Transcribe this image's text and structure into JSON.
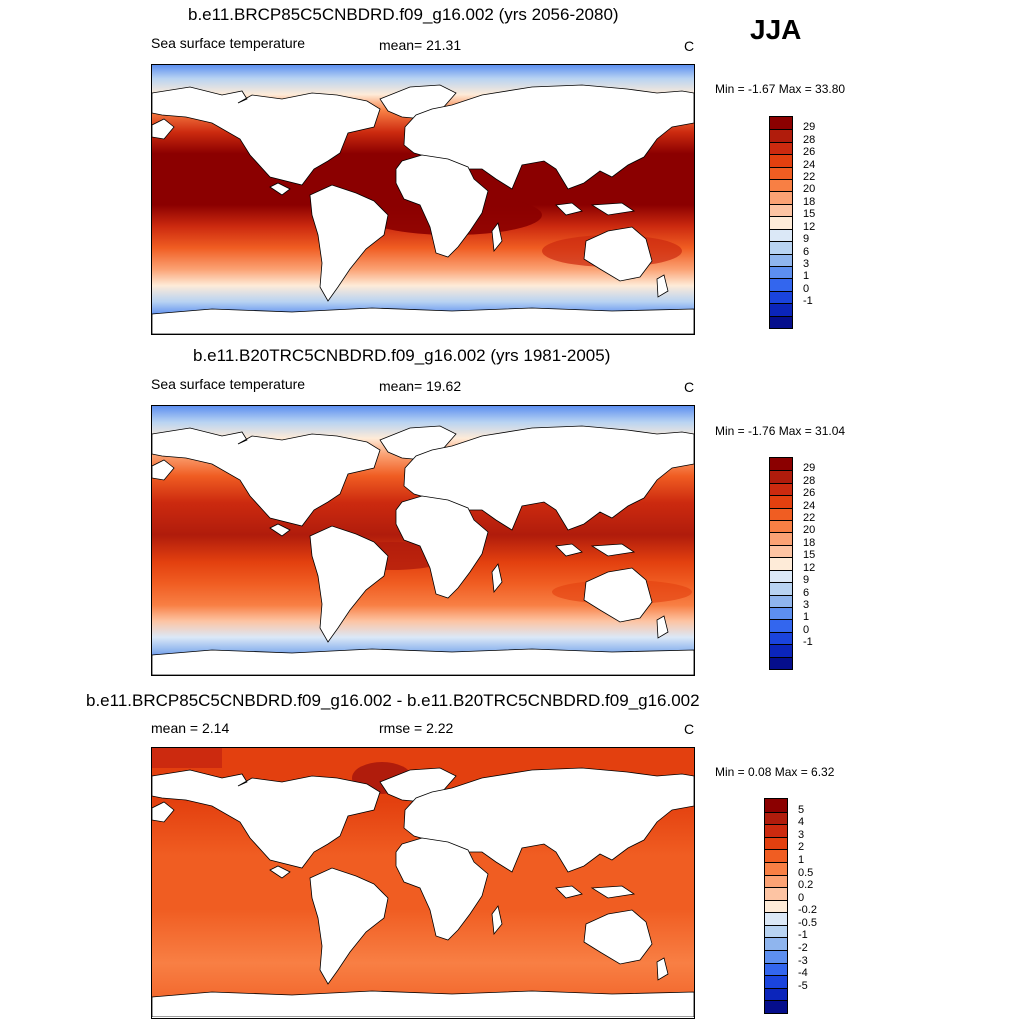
{
  "season": "JJA",
  "panels": [
    {
      "title": "b.e11.BRCP85C5CNBDRD.f09_g16.002 (yrs 2056-2080)",
      "left_label": "Sea surface temperature",
      "center_label": "mean=  21.31",
      "units": "C",
      "minmax": "Min =  -1.67 Max =  33.80",
      "variant": "future",
      "colors": [
        "#8b0000",
        "#b01c0c",
        "#cc2a0f",
        "#e3400f",
        "#f05d22",
        "#f87f44",
        "#fba274",
        "#fdc4a3",
        "#feebd8",
        "#dbe8f7",
        "#b8d3f2",
        "#8fb5ee",
        "#5d8ff0",
        "#3366ee",
        "#1a44dd",
        "#0b25bb",
        "#050e8c"
      ],
      "labels": [
        "29",
        "28",
        "26",
        "24",
        "22",
        "20",
        "18",
        "15",
        "12",
        "9",
        "6",
        "3",
        "1",
        "0",
        "-1"
      ]
    },
    {
      "title": "b.e11.B20TRC5CNBDRD.f09_g16.002 (yrs 1981-2005)",
      "left_label": "Sea surface temperature",
      "center_label": "mean=  19.62",
      "units": "C",
      "minmax": "Min =  -1.76 Max =  31.04",
      "variant": "past",
      "colors": [
        "#8b0000",
        "#b01c0c",
        "#cc2a0f",
        "#e3400f",
        "#f05d22",
        "#f87f44",
        "#fba274",
        "#fdc4a3",
        "#feebd8",
        "#dbe8f7",
        "#b8d3f2",
        "#8fb5ee",
        "#5d8ff0",
        "#3366ee",
        "#1a44dd",
        "#0b25bb",
        "#050e8c"
      ],
      "labels": [
        "29",
        "28",
        "26",
        "24",
        "22",
        "20",
        "18",
        "15",
        "12",
        "9",
        "6",
        "3",
        "1",
        "0",
        "-1"
      ]
    },
    {
      "title": "b.e11.BRCP85C5CNBDRD.f09_g16.002 - b.e11.B20TRC5CNBDRD.f09_g16.002",
      "left_label": "mean =   2.14",
      "center_label": "rmse =   2.22",
      "units": "C",
      "minmax": "Min =  0.08 Max =   6.32",
      "variant": "diff",
      "colors": [
        "#8b0000",
        "#b01c0c",
        "#cc2a0f",
        "#e3400f",
        "#f05d22",
        "#f87f44",
        "#fba274",
        "#fdc4a3",
        "#feebd8",
        "#dbe8f7",
        "#b8d3f2",
        "#8fb5ee",
        "#5d8ff0",
        "#3366ee",
        "#1a44dd",
        "#0b25bb",
        "#050e8c"
      ],
      "labels": [
        "5",
        "4",
        "3",
        "2",
        "1",
        "0.5",
        "0.2",
        "0",
        "-0.2",
        "-0.5",
        "-1",
        "-2",
        "-3",
        "-4",
        "-5"
      ]
    }
  ]
}
